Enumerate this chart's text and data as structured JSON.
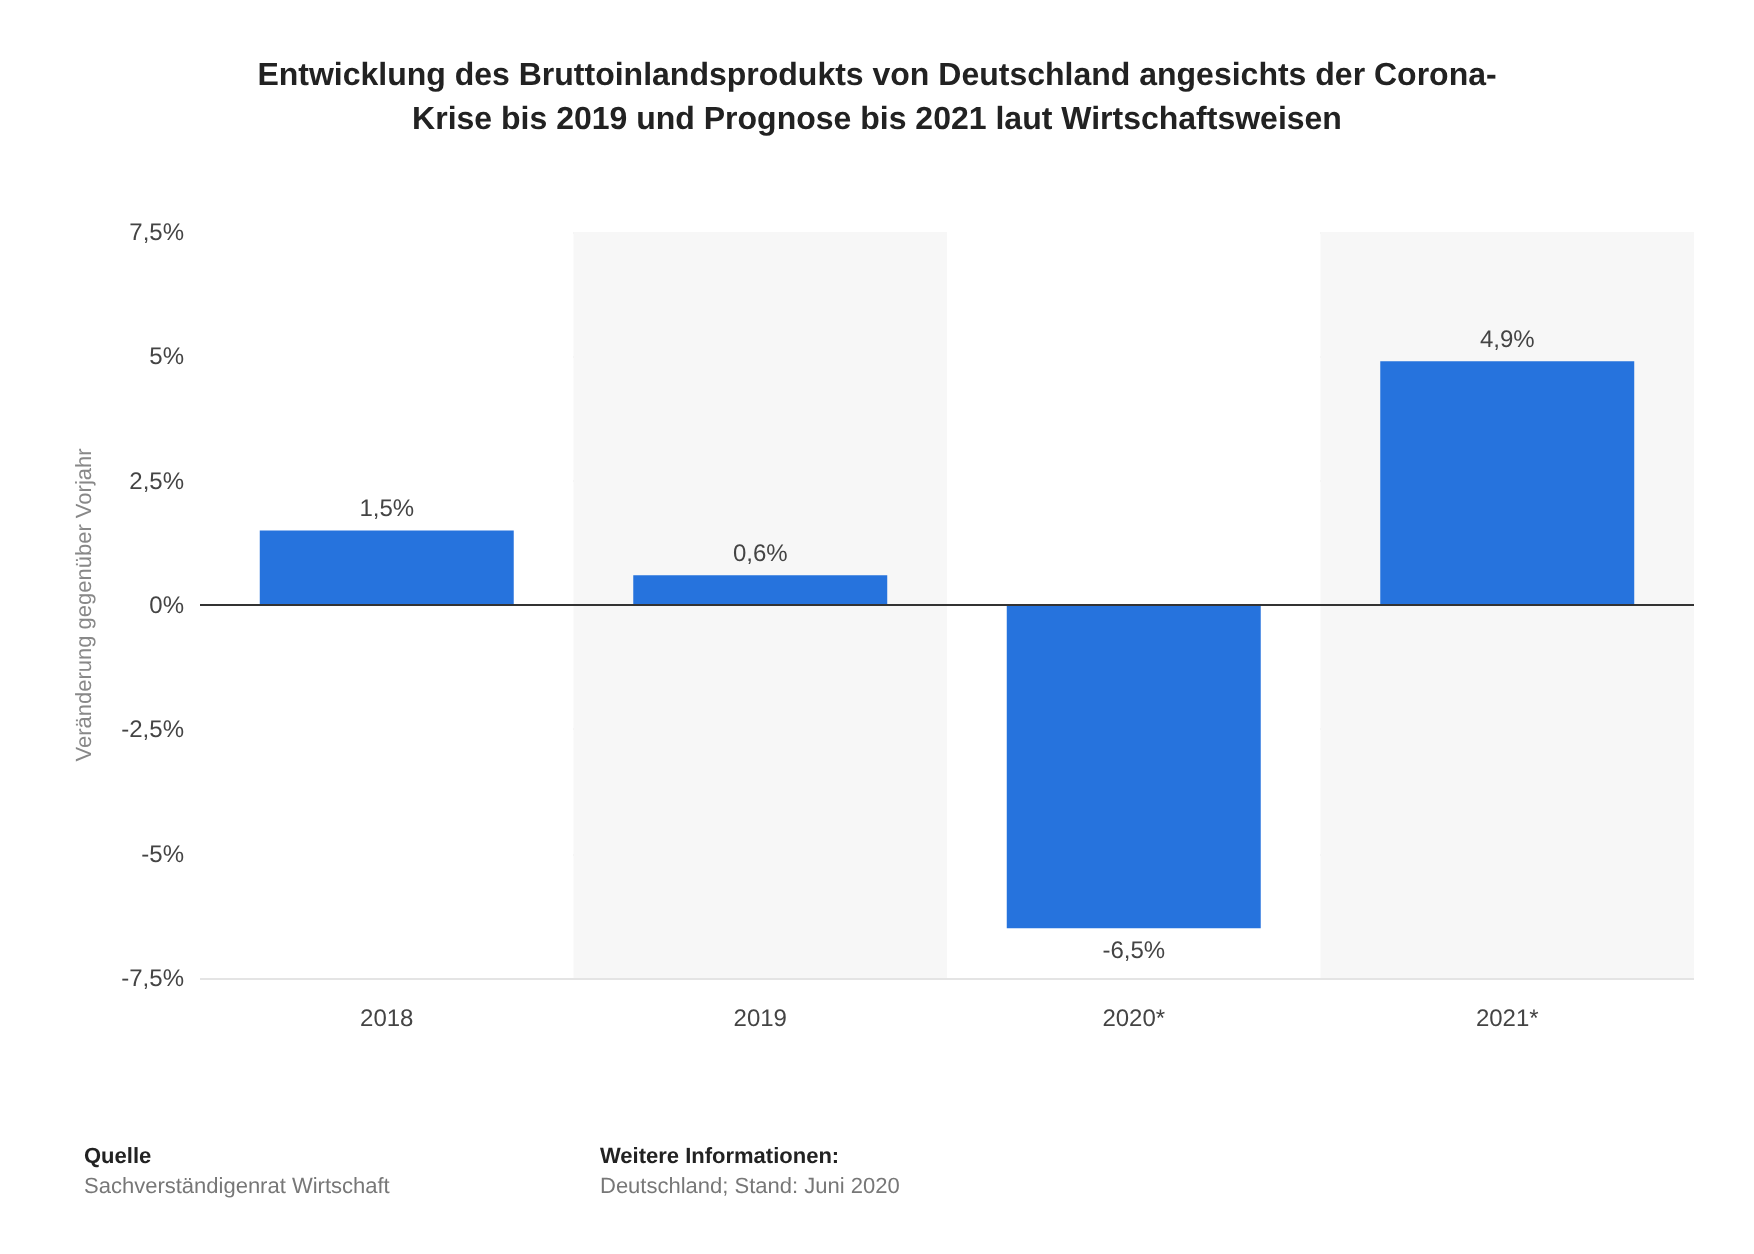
{
  "chart_data": {
    "type": "bar",
    "title": "Entwicklung des Bruttoinlandsprodukts von Deutschland angesichts der Corona-\nKrise bis 2019 und Prognose bis 2021 laut Wirtschaftsweisen",
    "ylabel": "Veränderung gegenüber Vorjahr",
    "categories": [
      "2018",
      "2019",
      "2020*",
      "2021*"
    ],
    "values": [
      1.5,
      0.6,
      -6.5,
      4.9
    ],
    "value_labels": [
      "1,5%",
      "0,6%",
      "-6,5%",
      "4,9%"
    ],
    "color": "#2673dd",
    "ylim": [
      -7.5,
      7.5
    ],
    "yticks": [
      {
        "value": -7.5,
        "label": "-7,5%"
      },
      {
        "value": -5,
        "label": "-5%"
      },
      {
        "value": -2.5,
        "label": "-2,5%"
      },
      {
        "value": 0,
        "label": "0%"
      },
      {
        "value": 2.5,
        "label": "2,5%"
      },
      {
        "value": 5,
        "label": "5%"
      },
      {
        "value": 7.5,
        "label": "7,5%"
      }
    ],
    "grid": "y",
    "annotations": [
      "Quelle",
      "Sachverständigenrat Wirtschaft",
      "Weitere Informationen:",
      "Deutschland; Stand: Juni 2020"
    ]
  }
}
